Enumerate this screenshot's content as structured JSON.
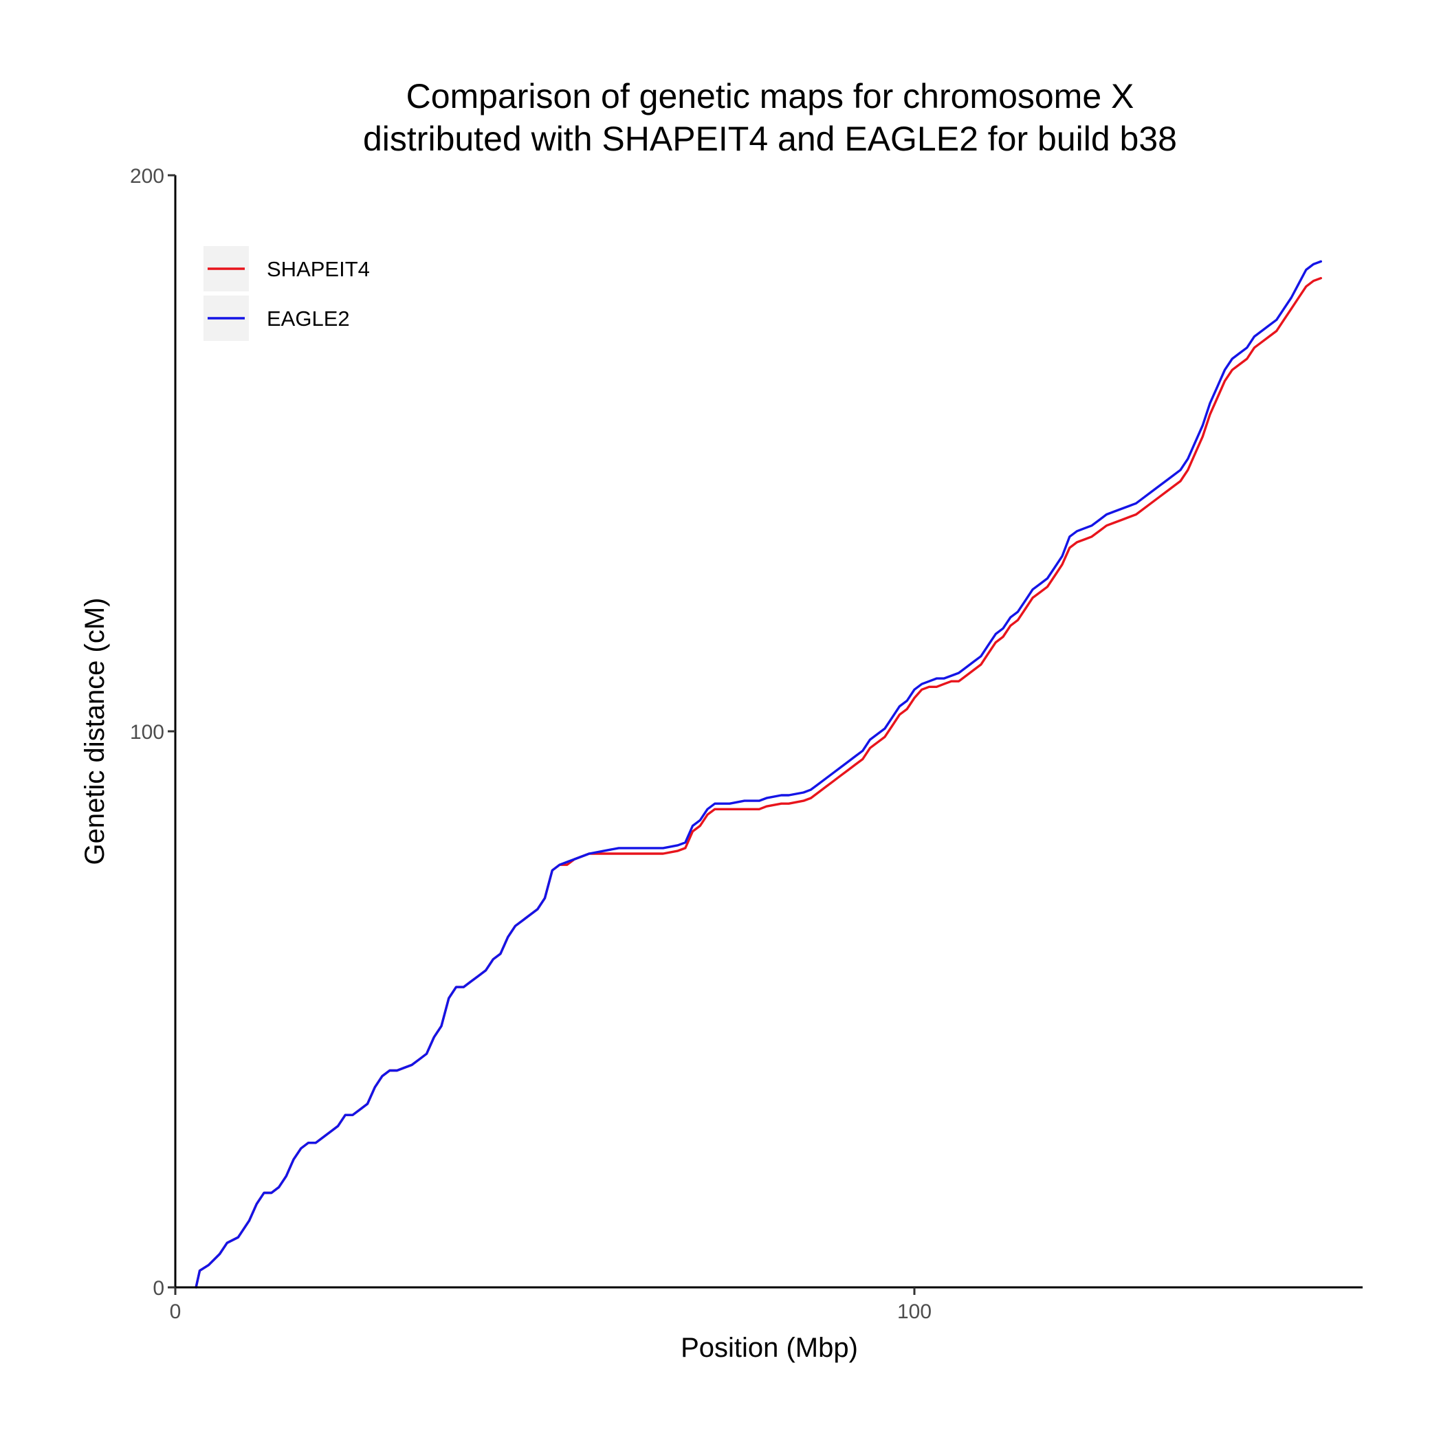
{
  "chart_data": {
    "type": "line",
    "title_lines": [
      "Comparison of genetic maps for chromosome X",
      "distributed with SHAPEIT4 and EAGLE2 for build b38"
    ],
    "xlabel": "Position (Mbp)",
    "ylabel": "Genetic distance (cM)",
    "xlim": [
      0,
      160
    ],
    "ylim": [
      0,
      200
    ],
    "x_ticks": [
      "0",
      "100"
    ],
    "y_ticks": [
      "0",
      "100",
      "200"
    ],
    "grid": false,
    "legend_position": "top-left",
    "series": [
      {
        "name": "SHAPEIT4",
        "color": "#e8141c",
        "points": [
          [
            2.8,
            0
          ],
          [
            3.3,
            3
          ],
          [
            4.5,
            4
          ],
          [
            6,
            6
          ],
          [
            7,
            8
          ],
          [
            8.5,
            9
          ],
          [
            10,
            12
          ],
          [
            11,
            15
          ],
          [
            12,
            17
          ],
          [
            13,
            17
          ],
          [
            14,
            18
          ],
          [
            15,
            20
          ],
          [
            16,
            23
          ],
          [
            17,
            25
          ],
          [
            18,
            26
          ],
          [
            19,
            26
          ],
          [
            20,
            27
          ],
          [
            21,
            28
          ],
          [
            22,
            29
          ],
          [
            23,
            31
          ],
          [
            24,
            31
          ],
          [
            25,
            32
          ],
          [
            26,
            33
          ],
          [
            27,
            36
          ],
          [
            28,
            38
          ],
          [
            29,
            39
          ],
          [
            30,
            39
          ],
          [
            31,
            39.5
          ],
          [
            32,
            40
          ],
          [
            33,
            41
          ],
          [
            34,
            42
          ],
          [
            35,
            45
          ],
          [
            36,
            47
          ],
          [
            37,
            52
          ],
          [
            38,
            54
          ],
          [
            39,
            54
          ],
          [
            40,
            55
          ],
          [
            41,
            56
          ],
          [
            42,
            57
          ],
          [
            43,
            59
          ],
          [
            44,
            60
          ],
          [
            45,
            63
          ],
          [
            46,
            65
          ],
          [
            47,
            66
          ],
          [
            48,
            67
          ],
          [
            49,
            68
          ],
          [
            50,
            70
          ],
          [
            51,
            75
          ],
          [
            52,
            76
          ],
          [
            53,
            76
          ],
          [
            54,
            77
          ],
          [
            56,
            78
          ],
          [
            58,
            78
          ],
          [
            60,
            78
          ],
          [
            62,
            78
          ],
          [
            64,
            78
          ],
          [
            65,
            78
          ],
          [
            66,
            78
          ],
          [
            68,
            78.5
          ],
          [
            69,
            79
          ],
          [
            70,
            82
          ],
          [
            71,
            83
          ],
          [
            72,
            85
          ],
          [
            73,
            86
          ],
          [
            75,
            86
          ],
          [
            77,
            86
          ],
          [
            79,
            86
          ],
          [
            80,
            86.5
          ],
          [
            82,
            87
          ],
          [
            83,
            87
          ],
          [
            85,
            87.5
          ],
          [
            86,
            88
          ],
          [
            87,
            89
          ],
          [
            88,
            90
          ],
          [
            89,
            91
          ],
          [
            90,
            92
          ],
          [
            91,
            93
          ],
          [
            92,
            94
          ],
          [
            93,
            95
          ],
          [
            94,
            97
          ],
          [
            95,
            98
          ],
          [
            96,
            99
          ],
          [
            97,
            101
          ],
          [
            98,
            103
          ],
          [
            99,
            104
          ],
          [
            100,
            106
          ],
          [
            101,
            107.5
          ],
          [
            102,
            108
          ],
          [
            103,
            108
          ],
          [
            104,
            108.5
          ],
          [
            105,
            109
          ],
          [
            106,
            109
          ],
          [
            107,
            110
          ],
          [
            108,
            111
          ],
          [
            109,
            112
          ],
          [
            110,
            114
          ],
          [
            111,
            116
          ],
          [
            112,
            117
          ],
          [
            113,
            119
          ],
          [
            114,
            120
          ],
          [
            115,
            122
          ],
          [
            116,
            124
          ],
          [
            117,
            125
          ],
          [
            118,
            126
          ],
          [
            119,
            128
          ],
          [
            120,
            130
          ],
          [
            121,
            133
          ],
          [
            122,
            134
          ],
          [
            123,
            134.5
          ],
          [
            124,
            135
          ],
          [
            125,
            136
          ],
          [
            126,
            137
          ],
          [
            127,
            137.5
          ],
          [
            128,
            138
          ],
          [
            129,
            138.5
          ],
          [
            130,
            139
          ],
          [
            131,
            140
          ],
          [
            132,
            141
          ],
          [
            133,
            142
          ],
          [
            134,
            143
          ],
          [
            135,
            144
          ],
          [
            136,
            145
          ],
          [
            137,
            147
          ],
          [
            138,
            150
          ],
          [
            139,
            153
          ],
          [
            140,
            157
          ],
          [
            141,
            160
          ],
          [
            142,
            163
          ],
          [
            143,
            165
          ],
          [
            144,
            166
          ],
          [
            145,
            167
          ],
          [
            146,
            169
          ],
          [
            147,
            170
          ],
          [
            148,
            171
          ],
          [
            149,
            172
          ],
          [
            150,
            174
          ],
          [
            151,
            176
          ],
          [
            152,
            178
          ],
          [
            153,
            180
          ],
          [
            154,
            181
          ],
          [
            155,
            181.5
          ]
        ]
      },
      {
        "name": "EAGLE2",
        "color": "#1414e6",
        "points": [
          [
            2.8,
            0
          ],
          [
            3.3,
            3
          ],
          [
            4.5,
            4
          ],
          [
            6,
            6
          ],
          [
            7,
            8
          ],
          [
            8.5,
            9
          ],
          [
            10,
            12
          ],
          [
            11,
            15
          ],
          [
            12,
            17
          ],
          [
            13,
            17
          ],
          [
            14,
            18
          ],
          [
            15,
            20
          ],
          [
            16,
            23
          ],
          [
            17,
            25
          ],
          [
            18,
            26
          ],
          [
            19,
            26
          ],
          [
            20,
            27
          ],
          [
            21,
            28
          ],
          [
            22,
            29
          ],
          [
            23,
            31
          ],
          [
            24,
            31
          ],
          [
            25,
            32
          ],
          [
            26,
            33
          ],
          [
            27,
            36
          ],
          [
            28,
            38
          ],
          [
            29,
            39
          ],
          [
            30,
            39
          ],
          [
            31,
            39.5
          ],
          [
            32,
            40
          ],
          [
            33,
            41
          ],
          [
            34,
            42
          ],
          [
            35,
            45
          ],
          [
            36,
            47
          ],
          [
            37,
            52
          ],
          [
            38,
            54
          ],
          [
            39,
            54
          ],
          [
            40,
            55
          ],
          [
            41,
            56
          ],
          [
            42,
            57
          ],
          [
            43,
            59
          ],
          [
            44,
            60
          ],
          [
            45,
            63
          ],
          [
            46,
            65
          ],
          [
            47,
            66
          ],
          [
            48,
            67
          ],
          [
            49,
            68
          ],
          [
            50,
            70
          ],
          [
            51,
            75
          ],
          [
            52,
            76
          ],
          [
            53,
            76.5
          ],
          [
            54,
            77
          ],
          [
            56,
            78
          ],
          [
            58,
            78.5
          ],
          [
            60,
            79
          ],
          [
            62,
            79
          ],
          [
            64,
            79
          ],
          [
            65,
            79
          ],
          [
            66,
            79
          ],
          [
            68,
            79.5
          ],
          [
            69,
            80
          ],
          [
            70,
            83
          ],
          [
            71,
            84
          ],
          [
            72,
            86
          ],
          [
            73,
            87
          ],
          [
            75,
            87
          ],
          [
            77,
            87.5
          ],
          [
            79,
            87.5
          ],
          [
            80,
            88
          ],
          [
            82,
            88.5
          ],
          [
            83,
            88.5
          ],
          [
            85,
            89
          ],
          [
            86,
            89.5
          ],
          [
            87,
            90.5
          ],
          [
            88,
            91.5
          ],
          [
            89,
            92.5
          ],
          [
            90,
            93.5
          ],
          [
            91,
            94.5
          ],
          [
            92,
            95.5
          ],
          [
            93,
            96.5
          ],
          [
            94,
            98.5
          ],
          [
            95,
            99.5
          ],
          [
            96,
            100.5
          ],
          [
            97,
            102.5
          ],
          [
            98,
            104.5
          ],
          [
            99,
            105.5
          ],
          [
            100,
            107.5
          ],
          [
            101,
            108.5
          ],
          [
            102,
            109
          ],
          [
            103,
            109.5
          ],
          [
            104,
            109.5
          ],
          [
            105,
            110
          ],
          [
            106,
            110.5
          ],
          [
            107,
            111.5
          ],
          [
            108,
            112.5
          ],
          [
            109,
            113.5
          ],
          [
            110,
            115.5
          ],
          [
            111,
            117.5
          ],
          [
            112,
            118.5
          ],
          [
            113,
            120.5
          ],
          [
            114,
            121.5
          ],
          [
            115,
            123.5
          ],
          [
            116,
            125.5
          ],
          [
            117,
            126.5
          ],
          [
            118,
            127.5
          ],
          [
            119,
            129.5
          ],
          [
            120,
            131.5
          ],
          [
            121,
            135
          ],
          [
            122,
            136
          ],
          [
            123,
            136.5
          ],
          [
            124,
            137
          ],
          [
            125,
            138
          ],
          [
            126,
            139
          ],
          [
            127,
            139.5
          ],
          [
            128,
            140
          ],
          [
            129,
            140.5
          ],
          [
            130,
            141
          ],
          [
            131,
            142
          ],
          [
            132,
            143
          ],
          [
            133,
            144
          ],
          [
            134,
            145
          ],
          [
            135,
            146
          ],
          [
            136,
            147
          ],
          [
            137,
            149
          ],
          [
            138,
            152
          ],
          [
            139,
            155
          ],
          [
            140,
            159
          ],
          [
            141,
            162
          ],
          [
            142,
            165
          ],
          [
            143,
            167
          ],
          [
            144,
            168
          ],
          [
            145,
            169
          ],
          [
            146,
            171
          ],
          [
            147,
            172
          ],
          [
            148,
            173
          ],
          [
            149,
            174
          ],
          [
            150,
            176
          ],
          [
            151,
            178
          ],
          [
            152,
            180.5
          ],
          [
            153,
            183
          ],
          [
            154,
            184
          ],
          [
            155,
            184.5
          ]
        ]
      }
    ]
  }
}
